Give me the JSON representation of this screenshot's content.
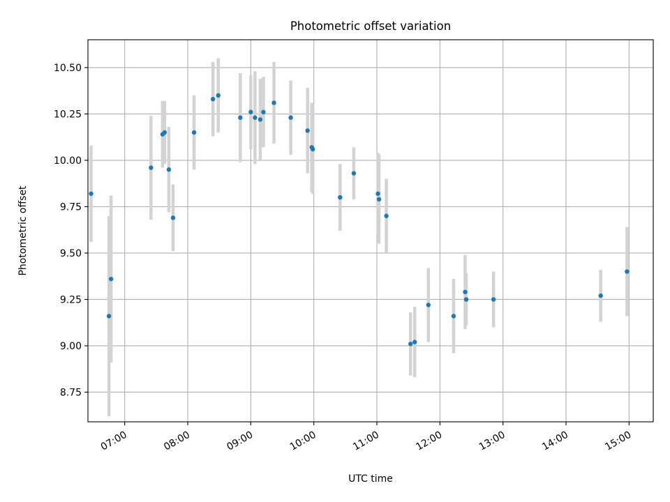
{
  "chart_data": {
    "type": "scatter",
    "title": "Photometric offset variation",
    "xlabel": "UTC time",
    "ylabel": "Photometric offset",
    "x_tick_labels": [
      "07:00",
      "08:00",
      "09:00",
      "10:00",
      "11:00",
      "12:00",
      "13:00",
      "14:00",
      "15:00"
    ],
    "y_tick_labels": [
      "8.75",
      "9.00",
      "9.25",
      "9.50",
      "9.75",
      "10.00",
      "10.25",
      "10.50"
    ],
    "xlim": [
      "06:25",
      "15:23"
    ],
    "ylim": [
      8.59,
      10.65
    ],
    "grid": true,
    "point_color": "#1f77b4",
    "errorbar_color": "#d3d3d3",
    "points": [
      {
        "time": "06:28",
        "y": 9.82,
        "err": 0.26
      },
      {
        "time": "06:45",
        "y": 9.16,
        "err": 0.54
      },
      {
        "time": "06:47",
        "y": 9.36,
        "err": 0.45
      },
      {
        "time": "07:25",
        "y": 9.96,
        "err": 0.28
      },
      {
        "time": "07:36",
        "y": 10.14,
        "err": 0.18
      },
      {
        "time": "07:38",
        "y": 10.15,
        "err": 0.17
      },
      {
        "time": "07:42",
        "y": 9.95,
        "err": 0.23
      },
      {
        "time": "07:46",
        "y": 9.69,
        "err": 0.18
      },
      {
        "time": "08:06",
        "y": 10.15,
        "err": 0.2
      },
      {
        "time": "08:24",
        "y": 10.33,
        "err": 0.2
      },
      {
        "time": "08:29",
        "y": 10.35,
        "err": 0.2
      },
      {
        "time": "08:50",
        "y": 10.23,
        "err": 0.24
      },
      {
        "time": "09:00",
        "y": 10.26,
        "err": 0.2
      },
      {
        "time": "09:04",
        "y": 10.23,
        "err": 0.25
      },
      {
        "time": "09:09",
        "y": 10.22,
        "err": 0.22
      },
      {
        "time": "09:12",
        "y": 10.26,
        "err": 0.19
      },
      {
        "time": "09:22",
        "y": 10.31,
        "err": 0.22
      },
      {
        "time": "09:38",
        "y": 10.23,
        "err": 0.2
      },
      {
        "time": "09:54",
        "y": 10.16,
        "err": 0.23
      },
      {
        "time": "09:58",
        "y": 10.07,
        "err": 0.24
      },
      {
        "time": "09:59",
        "y": 10.06,
        "err": 0.24
      },
      {
        "time": "10:25",
        "y": 9.8,
        "err": 0.18
      },
      {
        "time": "10:38",
        "y": 9.93,
        "err": 0.14
      },
      {
        "time": "11:01",
        "y": 9.82,
        "err": 0.22
      },
      {
        "time": "11:02",
        "y": 9.79,
        "err": 0.24
      },
      {
        "time": "11:09",
        "y": 9.7,
        "err": 0.2
      },
      {
        "time": "11:32",
        "y": 9.01,
        "err": 0.17
      },
      {
        "time": "11:36",
        "y": 9.02,
        "err": 0.19
      },
      {
        "time": "11:49",
        "y": 9.22,
        "err": 0.2
      },
      {
        "time": "12:13",
        "y": 9.16,
        "err": 0.2
      },
      {
        "time": "12:24",
        "y": 9.29,
        "err": 0.2
      },
      {
        "time": "12:25",
        "y": 9.25,
        "err": 0.14
      },
      {
        "time": "12:51",
        "y": 9.25,
        "err": 0.15
      },
      {
        "time": "14:33",
        "y": 9.27,
        "err": 0.14
      },
      {
        "time": "14:58",
        "y": 9.4,
        "err": 0.24
      }
    ]
  }
}
